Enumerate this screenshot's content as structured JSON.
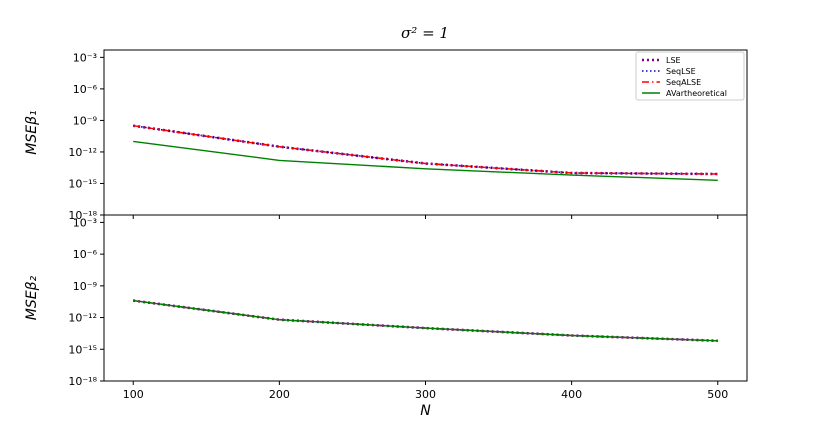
{
  "chart_data": [
    {
      "type": "line",
      "title": "σ² = 1",
      "ylabel": "MSEβ₁",
      "xlabel": "",
      "x": [
        100,
        200,
        300,
        400,
        500
      ],
      "xlim": [
        80,
        520
      ],
      "ylim_log10": [
        -18,
        -2.3
      ],
      "yscale": "log",
      "yticks": [
        "10⁻¹⁸",
        "10⁻¹⁵",
        "10⁻¹²",
        "10⁻⁹",
        "10⁻⁶",
        "10⁻³"
      ],
      "ytick_exponents": [
        -18,
        -15,
        -12,
        -9,
        -6,
        -3
      ],
      "legend": "top-right",
      "series": [
        {
          "name": "LSE",
          "color": "#800080",
          "style": "dotted-heavy",
          "values_log10": [
            -9.5,
            -11.5,
            -13.1,
            -14.0,
            -14.1
          ]
        },
        {
          "name": "SeqLSE",
          "color": "#0000cd",
          "style": "dotted",
          "values_log10": [
            -9.5,
            -11.5,
            -13.1,
            -14.0,
            -14.1
          ]
        },
        {
          "name": "SeqALSE",
          "color": "#ff0000",
          "style": "dashdot",
          "values_log10": [
            -9.5,
            -11.5,
            -13.1,
            -14.0,
            -14.1
          ]
        },
        {
          "name": "AVartheoretical",
          "color": "#008000",
          "style": "solid",
          "values_log10": [
            -11.0,
            -12.8,
            -13.6,
            -14.2,
            -14.7
          ]
        }
      ]
    },
    {
      "type": "line",
      "ylabel": "MSEβ₂",
      "xlabel": "N",
      "x": [
        100,
        200,
        300,
        400,
        500
      ],
      "xlim": [
        80,
        520
      ],
      "ylim_log10": [
        -18,
        -2.3
      ],
      "yscale": "log",
      "xticks": [
        "100",
        "200",
        "300",
        "400",
        "500"
      ],
      "yticks": [
        "10⁻¹⁸",
        "10⁻¹⁵",
        "10⁻¹²",
        "10⁻⁹",
        "10⁻⁶",
        "10⁻³"
      ],
      "ytick_exponents": [
        -18,
        -15,
        -12,
        -9,
        -6,
        -3
      ],
      "series": [
        {
          "name": "LSE",
          "color": "#800080",
          "style": "dotted-heavy",
          "values_log10": [
            -10.4,
            -12.2,
            -13.0,
            -13.7,
            -14.2
          ]
        },
        {
          "name": "SeqLSE",
          "color": "#0000cd",
          "style": "dotted",
          "values_log10": [
            -10.4,
            -12.2,
            -13.0,
            -13.7,
            -14.2
          ]
        },
        {
          "name": "SeqALSE",
          "color": "#ff0000",
          "style": "dashdot",
          "values_log10": [
            -10.4,
            -12.2,
            -13.0,
            -13.7,
            -14.2
          ]
        },
        {
          "name": "AVartheoretical",
          "color": "#008000",
          "style": "solid",
          "values_log10": [
            -10.4,
            -12.2,
            -13.0,
            -13.7,
            -14.2
          ]
        }
      ]
    }
  ]
}
